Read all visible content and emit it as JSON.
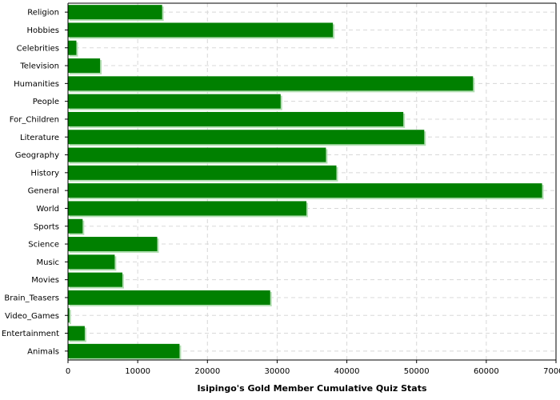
{
  "chart_data": {
    "type": "bar",
    "orientation": "horizontal",
    "title": "",
    "xlabel": "Isipingo's Gold Member Cumulative Quiz Stats",
    "ylabel": "",
    "xlim": [
      0,
      70000
    ],
    "xticks": [
      0,
      10000,
      20000,
      30000,
      40000,
      50000,
      60000,
      70000
    ],
    "grid": true,
    "legend": "none",
    "bar_color": "#008000",
    "bar_shadow_color": "#b4e0b4",
    "categories": [
      "Religion",
      "Hobbies",
      "Celebrities",
      "Television",
      "Humanities",
      "People",
      "For_Children",
      "Literature",
      "Geography",
      "History",
      "General",
      "World",
      "Sports",
      "Science",
      "Music",
      "Movies",
      "Brain_Teasers",
      "Video_Games",
      "Entertainment",
      "Animals"
    ],
    "values": [
      13500,
      38000,
      1200,
      4600,
      58100,
      30500,
      48100,
      51100,
      37000,
      38500,
      68000,
      34200,
      2100,
      12800,
      6700,
      7800,
      29000,
      200,
      2400,
      16000
    ]
  }
}
